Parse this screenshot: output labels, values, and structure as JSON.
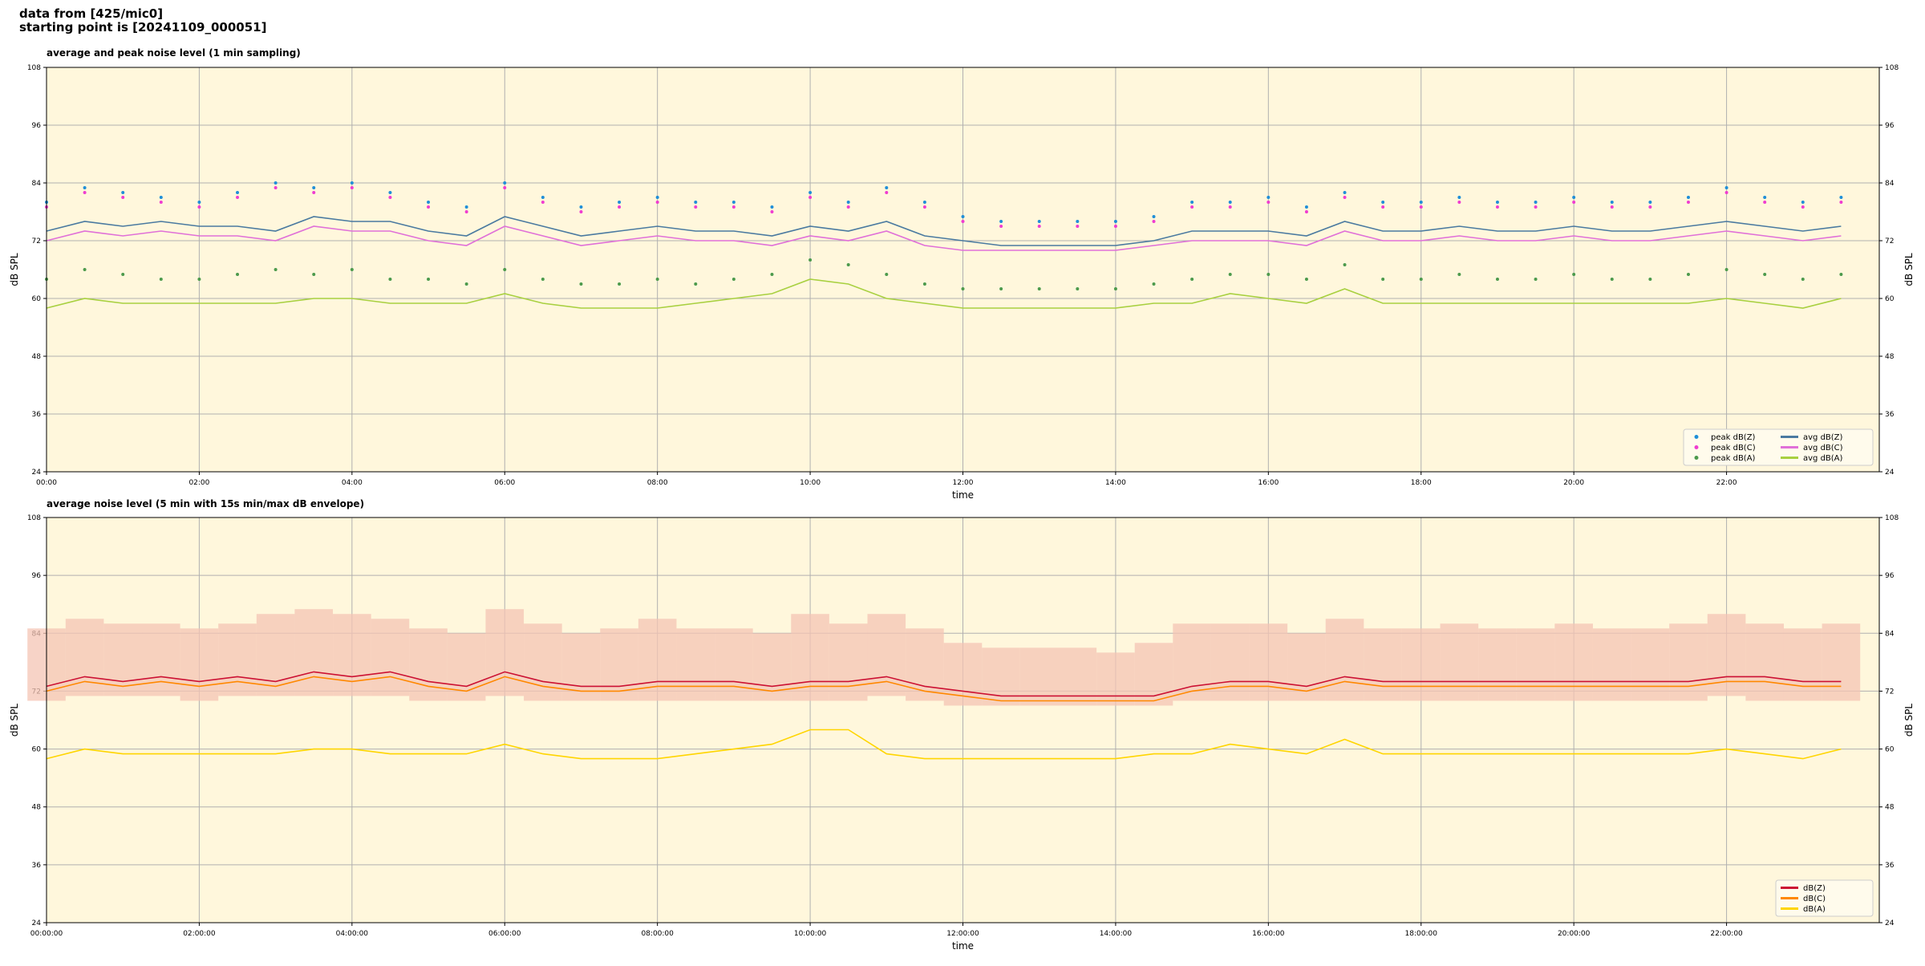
{
  "header": {
    "lines": [
      "data from [425/mic0]",
      "starting point is [20241109_000051]"
    ]
  },
  "chart_data": [
    {
      "type": "line",
      "title": "average and peak noise level (1 min sampling)",
      "x_label": "time",
      "y_label": "dB SPL",
      "xlim": [
        0,
        24
      ],
      "xticks": [
        {
          "value": 0,
          "label": "00:00"
        },
        {
          "value": 2,
          "label": "02:00"
        },
        {
          "value": 4,
          "label": "04:00"
        },
        {
          "value": 6,
          "label": "06:00"
        },
        {
          "value": 8,
          "label": "08:00"
        },
        {
          "value": 10,
          "label": "10:00"
        },
        {
          "value": 12,
          "label": "12:00"
        },
        {
          "value": 14,
          "label": "14:00"
        },
        {
          "value": 16,
          "label": "16:00"
        },
        {
          "value": 18,
          "label": "18:00"
        },
        {
          "value": 20,
          "label": "20:00"
        },
        {
          "value": 22,
          "label": "22:00"
        }
      ],
      "ylim": [
        24,
        108
      ],
      "yticks": [
        24,
        36,
        48,
        60,
        72,
        84,
        96,
        108
      ],
      "grid": true,
      "legend": "lower right",
      "legend_columns": 2,
      "x": [
        0,
        0.5,
        1,
        1.5,
        2,
        2.5,
        3,
        3.5,
        4,
        4.5,
        5,
        5.5,
        6,
        6.5,
        7,
        7.5,
        8,
        8.5,
        9,
        9.5,
        10,
        10.5,
        11,
        11.5,
        12,
        12.5,
        13,
        13.5,
        14,
        14.5,
        15,
        15.5,
        16,
        16.5,
        17,
        17.5,
        18,
        18.5,
        19,
        19.5,
        20,
        20.5,
        21,
        21.5,
        22,
        22.5,
        23,
        23.5
      ],
      "series": [
        {
          "name": "peak dB(Z)",
          "style": "points",
          "color": "#1f8fd8",
          "values": [
            80,
            83,
            82,
            81,
            80,
            82,
            84,
            83,
            84,
            82,
            80,
            79,
            84,
            81,
            79,
            80,
            81,
            80,
            80,
            79,
            82,
            80,
            83,
            80,
            77,
            76,
            76,
            76,
            76,
            77,
            80,
            80,
            81,
            79,
            82,
            80,
            80,
            81,
            80,
            80,
            81,
            80,
            80,
            81,
            83,
            81,
            80,
            81
          ]
        },
        {
          "name": "peak dB(C)",
          "style": "points",
          "color": "#f03cd0",
          "values": [
            79,
            82,
            81,
            80,
            79,
            81,
            83,
            82,
            83,
            81,
            79,
            78,
            83,
            80,
            78,
            79,
            80,
            79,
            79,
            78,
            81,
            79,
            82,
            79,
            76,
            75,
            75,
            75,
            75,
            76,
            79,
            79,
            80,
            78,
            81,
            79,
            79,
            80,
            79,
            79,
            80,
            79,
            79,
            80,
            82,
            80,
            79,
            80
          ]
        },
        {
          "name": "peak dB(A)",
          "style": "points",
          "color": "#4c9a4c",
          "values": [
            64,
            66,
            65,
            64,
            64,
            65,
            66,
            65,
            66,
            64,
            64,
            63,
            66,
            64,
            63,
            63,
            64,
            63,
            64,
            65,
            68,
            67,
            65,
            63,
            62,
            62,
            62,
            62,
            62,
            63,
            64,
            65,
            65,
            64,
            67,
            64,
            64,
            65,
            64,
            64,
            65,
            64,
            64,
            65,
            66,
            65,
            64,
            65
          ]
        },
        {
          "name": "avg dB(Z)",
          "style": "line",
          "color": "#4a7aa0",
          "values": [
            74,
            76,
            75,
            76,
            75,
            75,
            74,
            77,
            76,
            76,
            74,
            73,
            77,
            75,
            73,
            74,
            75,
            74,
            74,
            73,
            75,
            74,
            76,
            73,
            72,
            71,
            71,
            71,
            71,
            72,
            74,
            74,
            74,
            73,
            76,
            74,
            74,
            75,
            74,
            74,
            75,
            74,
            74,
            75,
            76,
            75,
            74,
            75
          ]
        },
        {
          "name": "avg dB(C)",
          "style": "line",
          "color": "#e070d8",
          "values": [
            72,
            74,
            73,
            74,
            73,
            73,
            72,
            75,
            74,
            74,
            72,
            71,
            75,
            73,
            71,
            72,
            73,
            72,
            72,
            71,
            73,
            72,
            74,
            71,
            70,
            70,
            70,
            70,
            70,
            71,
            72,
            72,
            72,
            71,
            74,
            72,
            72,
            73,
            72,
            72,
            73,
            72,
            72,
            73,
            74,
            73,
            72,
            73
          ]
        },
        {
          "name": "avg dB(A)",
          "style": "line",
          "color": "#a8d040",
          "values": [
            58,
            60,
            59,
            59,
            59,
            59,
            59,
            60,
            60,
            59,
            59,
            59,
            61,
            59,
            58,
            58,
            58,
            59,
            60,
            61,
            64,
            63,
            60,
            59,
            58,
            58,
            58,
            58,
            58,
            59,
            59,
            61,
            60,
            59,
            62,
            59,
            59,
            59,
            59,
            59,
            59,
            59,
            59,
            59,
            60,
            59,
            58,
            60
          ]
        }
      ]
    },
    {
      "type": "line",
      "title": "average noise level (5 min with 15s min/max dB envelope)",
      "x_label": "time",
      "y_label": "dB SPL",
      "xlim": [
        0,
        24
      ],
      "xticks": [
        {
          "value": 0,
          "label": "00:00:00"
        },
        {
          "value": 2,
          "label": "02:00:00"
        },
        {
          "value": 4,
          "label": "04:00:00"
        },
        {
          "value": 6,
          "label": "06:00:00"
        },
        {
          "value": 8,
          "label": "08:00:00"
        },
        {
          "value": 10,
          "label": "10:00:00"
        },
        {
          "value": 12,
          "label": "12:00:00"
        },
        {
          "value": 14,
          "label": "14:00:00"
        },
        {
          "value": 16,
          "label": "16:00:00"
        },
        {
          "value": 18,
          "label": "18:00:00"
        },
        {
          "value": 20,
          "label": "20:00:00"
        },
        {
          "value": 22,
          "label": "22:00:00"
        }
      ],
      "ylim": [
        24,
        108
      ],
      "yticks": [
        24,
        36,
        48,
        60,
        72,
        84,
        96,
        108
      ],
      "grid": true,
      "legend": "lower right",
      "legend_columns": 1,
      "x": [
        0,
        0.5,
        1,
        1.5,
        2,
        2.5,
        3,
        3.5,
        4,
        4.5,
        5,
        5.5,
        6,
        6.5,
        7,
        7.5,
        8,
        8.5,
        9,
        9.5,
        10,
        10.5,
        11,
        11.5,
        12,
        12.5,
        13,
        13.5,
        14,
        14.5,
        15,
        15.5,
        16,
        16.5,
        17,
        17.5,
        18,
        18.5,
        19,
        19.5,
        20,
        20.5,
        21,
        21.5,
        22,
        22.5,
        23,
        23.5
      ],
      "envelope": {
        "color": "#f4c4b4",
        "low": [
          70,
          71,
          71,
          71,
          70,
          71,
          71,
          71,
          71,
          71,
          70,
          70,
          71,
          70,
          70,
          70,
          70,
          70,
          70,
          70,
          70,
          70,
          71,
          70,
          69,
          69,
          69,
          69,
          69,
          69,
          70,
          70,
          70,
          70,
          70,
          70,
          70,
          70,
          70,
          70,
          70,
          70,
          70,
          70,
          71,
          70,
          70,
          70
        ],
        "high": [
          85,
          87,
          86,
          86,
          85,
          86,
          88,
          89,
          88,
          87,
          85,
          84,
          89,
          86,
          84,
          85,
          87,
          85,
          85,
          84,
          88,
          86,
          88,
          85,
          82,
          81,
          81,
          81,
          80,
          82,
          86,
          86,
          86,
          84,
          87,
          85,
          85,
          86,
          85,
          85,
          86,
          85,
          85,
          86,
          88,
          86,
          85,
          86
        ]
      },
      "series": [
        {
          "name": "dB(Z)",
          "style": "line",
          "color": "#cc1133",
          "values": [
            73,
            75,
            74,
            75,
            74,
            75,
            74,
            76,
            75,
            76,
            74,
            73,
            76,
            74,
            73,
            73,
            74,
            74,
            74,
            73,
            74,
            74,
            75,
            73,
            72,
            71,
            71,
            71,
            71,
            71,
            73,
            74,
            74,
            73,
            75,
            74,
            74,
            74,
            74,
            74,
            74,
            74,
            74,
            74,
            75,
            75,
            74,
            74
          ]
        },
        {
          "name": "dB(C)",
          "style": "line",
          "color": "#ff8800",
          "values": [
            72,
            74,
            73,
            74,
            73,
            74,
            73,
            75,
            74,
            75,
            73,
            72,
            75,
            73,
            72,
            72,
            73,
            73,
            73,
            72,
            73,
            73,
            74,
            72,
            71,
            70,
            70,
            70,
            70,
            70,
            72,
            73,
            73,
            72,
            74,
            73,
            73,
            73,
            73,
            73,
            73,
            73,
            73,
            73,
            74,
            74,
            73,
            73
          ]
        },
        {
          "name": "dB(A)",
          "style": "line",
          "color": "#ffd500",
          "values": [
            58,
            60,
            59,
            59,
            59,
            59,
            59,
            60,
            60,
            59,
            59,
            59,
            61,
            59,
            58,
            58,
            58,
            59,
            60,
            61,
            64,
            64,
            59,
            58,
            58,
            58,
            58,
            58,
            58,
            59,
            59,
            61,
            60,
            59,
            62,
            59,
            59,
            59,
            59,
            59,
            59,
            59,
            59,
            59,
            60,
            59,
            58,
            60
          ]
        }
      ]
    }
  ]
}
